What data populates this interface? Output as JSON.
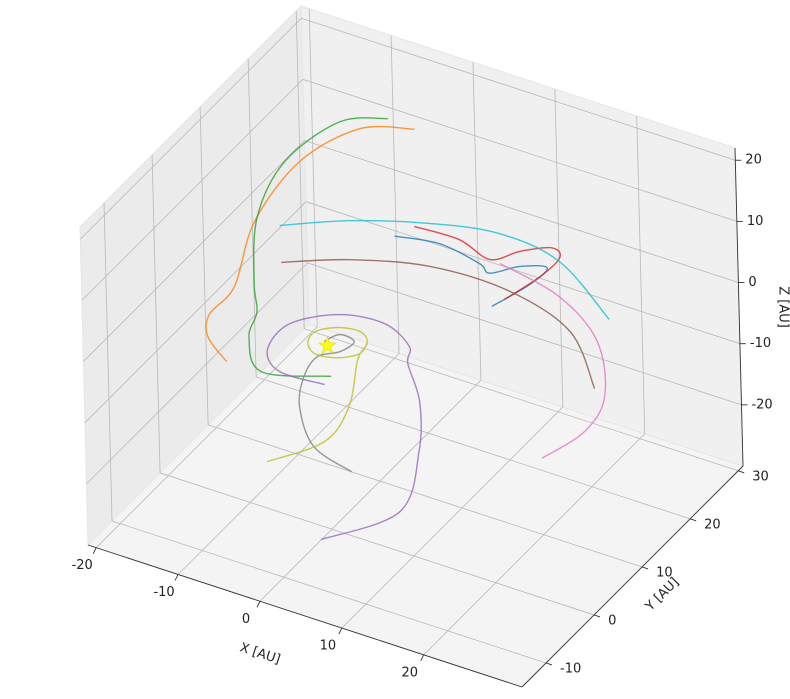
{
  "chart_data": {
    "type": "line3d",
    "xlabel": "X [AU]",
    "ylabel": "Y [AU]",
    "zlabel": "Z [AU]",
    "xlim": [
      -21,
      32
    ],
    "ylim": [
      -15,
      31
    ],
    "zlim": [
      -30,
      22
    ],
    "xticks": [
      -20,
      -10,
      0,
      10,
      20
    ],
    "yticks": [
      -10,
      0,
      10,
      20,
      30
    ],
    "zticks": [
      -20,
      -10,
      0,
      10,
      20
    ],
    "grid": true,
    "series": [
      {
        "color": "#1f77b4",
        "x": [
          0.7,
          4.9,
          8.7,
          9.4,
          12.1,
          14.2,
          12.4,
          9.2
        ],
        "y": [
          13.0,
          15.1,
          16.9,
          17.8,
          19.4,
          21.6,
          20.9,
          18.4
        ],
        "z": [
          8,
          7,
          4,
          2,
          3,
          2,
          -1,
          -4
        ]
      },
      {
        "color": "#ff7f0e",
        "x": [
          -1.5,
          -7.2,
          -12.0,
          -14.1,
          -14.0,
          -15.5,
          -15.3,
          -13.0
        ],
        "y": [
          21.3,
          19.5,
          15.1,
          9.1,
          4.5,
          1.8,
          1.0,
          0.9
        ],
        "z": [
          18,
          17,
          13,
          7,
          0,
          -3,
          -6,
          -9
        ]
      },
      {
        "color": "#2ca02c",
        "x": [
          -3.8,
          -9.1,
          -12.8,
          -13.7,
          -11.5,
          -9.6,
          -9.2,
          -6.6,
          -0.3
        ],
        "y": [
          19.7,
          18.6,
          13.4,
          9.0,
          4.4,
          1.7,
          -0.7,
          -2.7,
          1.1
        ],
        "z": [
          20,
          18,
          14,
          8,
          2,
          0,
          -2,
          -5,
          -6
        ]
      },
      {
        "color": "#d62728",
        "x": [
          2.2,
          7.0,
          9.9,
          11.9,
          14.5,
          15.0,
          13.2,
          10.3
        ],
        "y": [
          14.6,
          15.8,
          17.1,
          19.9,
          22.1,
          22.9,
          21.7,
          19.2
        ],
        "z": [
          9,
          8,
          5,
          5,
          5,
          3,
          0,
          -3
        ]
      },
      {
        "color": "#9467bd",
        "x": [
          -1.3,
          -5.5,
          -6.9,
          -5.5,
          -0.6,
          4.4,
          7.6,
          7.3,
          9.0,
          10.1,
          10.4,
          3.4
        ],
        "y": [
          1.4,
          -0.8,
          -0.8,
          1.5,
          3.6,
          4.5,
          4.1,
          4.2,
          3.6,
          1.4,
          -3.3,
          -7.9
        ],
        "z": [
          -8,
          -6,
          -3,
          0,
          2,
          2,
          0,
          -3,
          -8,
          -14,
          -20,
          -24
        ]
      },
      {
        "color": "#8c564b",
        "x": [
          -9.6,
          -3.6,
          3.3,
          10.6,
          16.4,
          19.3
        ],
        "y": [
          6.9,
          10.8,
          15.8,
          19.8,
          22.3,
          22.2
        ],
        "z": [
          4,
          4,
          2,
          -2,
          -8,
          -16
        ]
      },
      {
        "color": "#e377c2",
        "x": [
          11.2,
          16.8,
          21.0,
          22.1,
          20.6,
          17.4
        ],
        "y": [
          17.0,
          19.6,
          20.2,
          19.6,
          17.8,
          14.3
        ],
        "z": [
          5,
          0,
          -6,
          -14,
          -19,
          -22
        ]
      },
      {
        "color": "#7f7f7f",
        "x": [
          -0.7,
          0.1,
          2.1,
          1.7,
          -0.5,
          -2.2,
          -2.7,
          -1.2,
          2.3
        ],
        "y": [
          0.5,
          2.4,
          2.0,
          -0.3,
          -1.3,
          -1.3,
          -1.5,
          -1.3,
          0.5
        ],
        "z": [
          0,
          0,
          0,
          0,
          -1,
          -5,
          -10,
          -16,
          -20
        ]
      },
      {
        "color": "#bcbd22",
        "x": [
          3.4,
          3.7,
          2.0,
          -0.4,
          -2.1,
          -2.4,
          -0.7,
          1.7,
          3.4,
          2.9,
          2.4,
          -0.1,
          -4.7
        ],
        "y": [
          2.5,
          0.4,
          -1.4,
          -1.9,
          -0.5,
          1.6,
          3.4,
          3.9,
          2.5,
          1.3,
          0.1,
          -0.9,
          -5.1
        ],
        "z": [
          0,
          0,
          0,
          0,
          0,
          0,
          0,
          0,
          0,
          -2,
          -9,
          -15,
          -17
        ]
      },
      {
        "color": "#17becf",
        "x": [
          -9.7,
          -3.1,
          3.9,
          10.1,
          15.9,
          21.2
        ],
        "y": [
          6.9,
          10.3,
          14.9,
          18.8,
          21.3,
          22.4
        ],
        "z": [
          10,
          11,
          10,
          8,
          4,
          -4
        ]
      }
    ],
    "markers": [
      {
        "x": 0,
        "y": 0,
        "z": 0,
        "color": "#ffff00"
      }
    ]
  }
}
